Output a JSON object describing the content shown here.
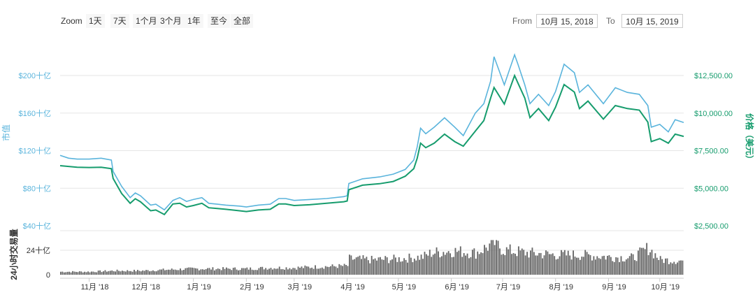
{
  "toolbar": {
    "zoom_label": "Zoom",
    "zoom_buttons": [
      "1天",
      "7天",
      "1个月",
      "3个月",
      "1年",
      "至今",
      "全部"
    ],
    "from_label": "From",
    "from_value": "10月 15, 2018",
    "to_label": "To",
    "to_value": "10月 15, 2019"
  },
  "colors": {
    "market_cap": "#5ab4dc",
    "price": "#169c6d",
    "volume": "#666666",
    "grid": "#e6e6e6"
  },
  "chart_data": {
    "type": "line",
    "y_left_label": "市值",
    "y_right_label": "价格（美元）",
    "volume_label": "24小时交易量",
    "left_ticks": [
      "$40十亿",
      "$80十亿",
      "$120十亿",
      "$160十亿",
      "$200十亿"
    ],
    "right_ticks": [
      "$2,500.00",
      "$5,000.00",
      "$7,500.00",
      "$10,000.00",
      "$12,500.00"
    ],
    "volume_ticks": [
      "0",
      "24十亿"
    ],
    "x_ticks": [
      "11月 '18",
      "12月 '18",
      "1月 '19",
      "2月 '19",
      "3月 '19",
      "4月 '19",
      "5月 '19",
      "6月 '19",
      "7月 '19",
      "8月 '19",
      "9月 '19",
      "10月 '19"
    ],
    "left_range": [
      40,
      200
    ],
    "right_range": [
      2500,
      12500
    ],
    "volume_range": [
      0,
      24
    ],
    "dates": [
      "2018-10-15",
      "2018-10-20",
      "2018-10-25",
      "2018-11-01",
      "2018-11-08",
      "2018-11-14",
      "2018-11-15",
      "2018-11-20",
      "2018-11-25",
      "2018-11-28",
      "2018-12-01",
      "2018-12-07",
      "2018-12-10",
      "2018-12-15",
      "2018-12-20",
      "2018-12-24",
      "2018-12-28",
      "2019-01-01",
      "2019-01-06",
      "2019-01-10",
      "2019-01-15",
      "2019-01-20",
      "2019-01-28",
      "2019-02-01",
      "2019-02-08",
      "2019-02-15",
      "2019-02-20",
      "2019-02-24",
      "2019-03-01",
      "2019-03-10",
      "2019-03-20",
      "2019-03-30",
      "2019-04-01",
      "2019-04-02",
      "2019-04-10",
      "2019-04-20",
      "2019-04-28",
      "2019-05-05",
      "2019-05-10",
      "2019-05-12",
      "2019-05-14",
      "2019-05-17",
      "2019-05-22",
      "2019-05-28",
      "2019-06-03",
      "2019-06-08",
      "2019-06-15",
      "2019-06-20",
      "2019-06-24",
      "2019-06-26",
      "2019-07-02",
      "2019-07-08",
      "2019-07-10",
      "2019-07-14",
      "2019-07-17",
      "2019-07-22",
      "2019-07-28",
      "2019-08-01",
      "2019-08-06",
      "2019-08-12",
      "2019-08-15",
      "2019-08-20",
      "2019-08-29",
      "2019-09-05",
      "2019-09-12",
      "2019-09-19",
      "2019-09-24",
      "2019-09-26",
      "2019-10-01",
      "2019-10-06",
      "2019-10-10",
      "2019-10-15"
    ],
    "price": [
      6500,
      6450,
      6400,
      6380,
      6400,
      6300,
      5650,
      4650,
      4000,
      4300,
      4100,
      3500,
      3550,
      3250,
      3950,
      4000,
      3750,
      3850,
      4000,
      3700,
      3650,
      3600,
      3500,
      3450,
      3550,
      3600,
      3950,
      3950,
      3850,
      3900,
      4000,
      4100,
      4150,
      4900,
      5200,
      5300,
      5450,
      5800,
      6300,
      7000,
      8000,
      7700,
      8000,
      8600,
      8100,
      7800,
      8800,
      9500,
      11000,
      11700,
      10600,
      12500,
      12000,
      11000,
      9700,
      10300,
      9500,
      10400,
      11900,
      11400,
      10300,
      10800,
      9600,
      10500,
      10300,
      10200,
      9400,
      8100,
      8300,
      8000,
      8600,
      8450
    ],
    "market_cap": [
      115,
      112,
      111,
      111,
      112,
      110,
      98,
      82,
      70,
      75,
      72,
      62,
      63,
      57,
      67,
      70,
      66,
      68,
      70,
      64,
      63,
      62,
      61,
      60,
      62,
      63,
      69,
      69,
      67,
      68,
      69,
      71,
      72,
      85,
      90,
      92,
      95,
      100,
      110,
      124,
      144,
      138,
      145,
      155,
      145,
      136,
      160,
      170,
      194,
      220,
      190,
      222,
      212,
      190,
      170,
      180,
      168,
      183,
      212,
      203,
      182,
      190,
      170,
      187,
      182,
      180,
      168,
      145,
      148,
      140,
      153,
      150
    ],
    "volume_dates": [
      "2018-10-15",
      "2018-11-01",
      "2018-11-15",
      "2018-12-01",
      "2018-12-15",
      "2019-01-01",
      "2019-01-15",
      "2019-02-01",
      "2019-02-15",
      "2019-03-01",
      "2019-03-15",
      "2019-04-01",
      "2019-04-02",
      "2019-04-15",
      "2019-05-01",
      "2019-05-15",
      "2019-05-20",
      "2019-06-01",
      "2019-06-15",
      "2019-06-26",
      "2019-07-01",
      "2019-07-15",
      "2019-08-01",
      "2019-08-15",
      "2019-09-01",
      "2019-09-15",
      "2019-09-24",
      "2019-10-01",
      "2019-10-15"
    ],
    "volume_values": [
      3,
      3,
      4,
      4,
      5,
      6,
      6,
      6,
      7,
      7,
      8,
      9,
      16,
      15,
      16,
      18,
      22,
      24,
      22,
      32,
      25,
      22,
      20,
      20,
      18,
      17,
      27,
      15,
      14
    ]
  }
}
